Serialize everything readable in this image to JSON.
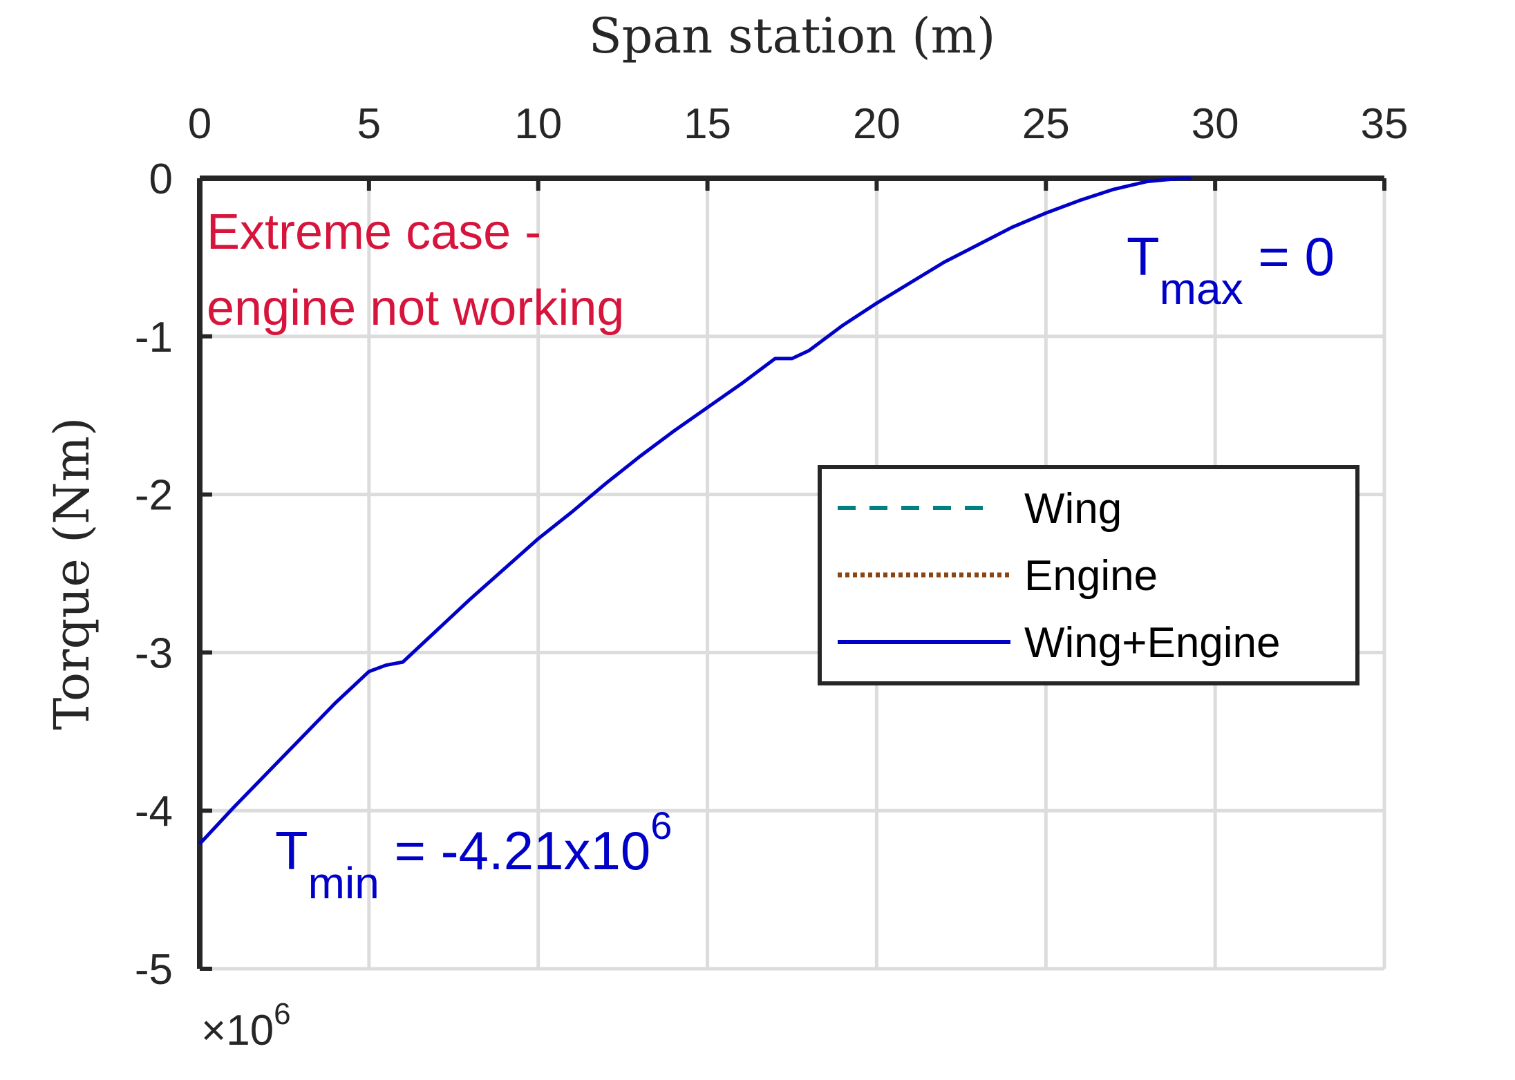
{
  "chart_data": {
    "type": "line",
    "xlabel": "Span station (m)",
    "ylabel": "Torque (Nm)",
    "xlim": [
      0,
      35
    ],
    "ylim": [
      -5,
      0
    ],
    "x_ticks": [
      "0",
      "5",
      "10",
      "15",
      "20",
      "25",
      "30",
      "35"
    ],
    "y_ticks": [
      "0",
      "-1",
      "-2",
      "-3",
      "-4",
      "-5"
    ],
    "y_multiplier": {
      "prefix": "×10",
      "exponent": "6"
    },
    "grid": true,
    "x_axis_location": "top",
    "legend_position": "center-right",
    "series": [
      {
        "name": "Wing",
        "style": "dashed",
        "color": "#008080",
        "x": [],
        "y": []
      },
      {
        "name": "Engine",
        "style": "dotted",
        "color": "#8b4513",
        "x": [],
        "y": []
      },
      {
        "name": "Wing+Engine",
        "style": "solid",
        "color": "#0000c8",
        "x": [
          0,
          1,
          2,
          3,
          4,
          5,
          5.5,
          6,
          7,
          8,
          9,
          10,
          11,
          12,
          13,
          14,
          15,
          16,
          17,
          17.5,
          18,
          19,
          20,
          21,
          22,
          23,
          24,
          25,
          26,
          27,
          28,
          29,
          29.3
        ],
        "y": [
          -4.21,
          -3.98,
          -3.76,
          -3.54,
          -3.32,
          -3.12,
          -3.08,
          -3.06,
          -2.86,
          -2.66,
          -2.47,
          -2.28,
          -2.11,
          -1.93,
          -1.76,
          -1.6,
          -1.45,
          -1.3,
          -1.14,
          -1.14,
          -1.09,
          -0.93,
          -0.79,
          -0.66,
          -0.53,
          -0.42,
          -0.31,
          -0.22,
          -0.14,
          -0.07,
          -0.02,
          0.0,
          0.0
        ]
      }
    ],
    "annotations": {
      "case_line1": "Extreme case -",
      "case_line2": "engine not working",
      "tmax_base": "T",
      "tmax_sub": "max",
      "tmax_rest": " = 0",
      "tmin_base": "T",
      "tmin_sub": "min",
      "tmin_rest": " = -4.21x10",
      "tmin_sup": "6"
    }
  }
}
